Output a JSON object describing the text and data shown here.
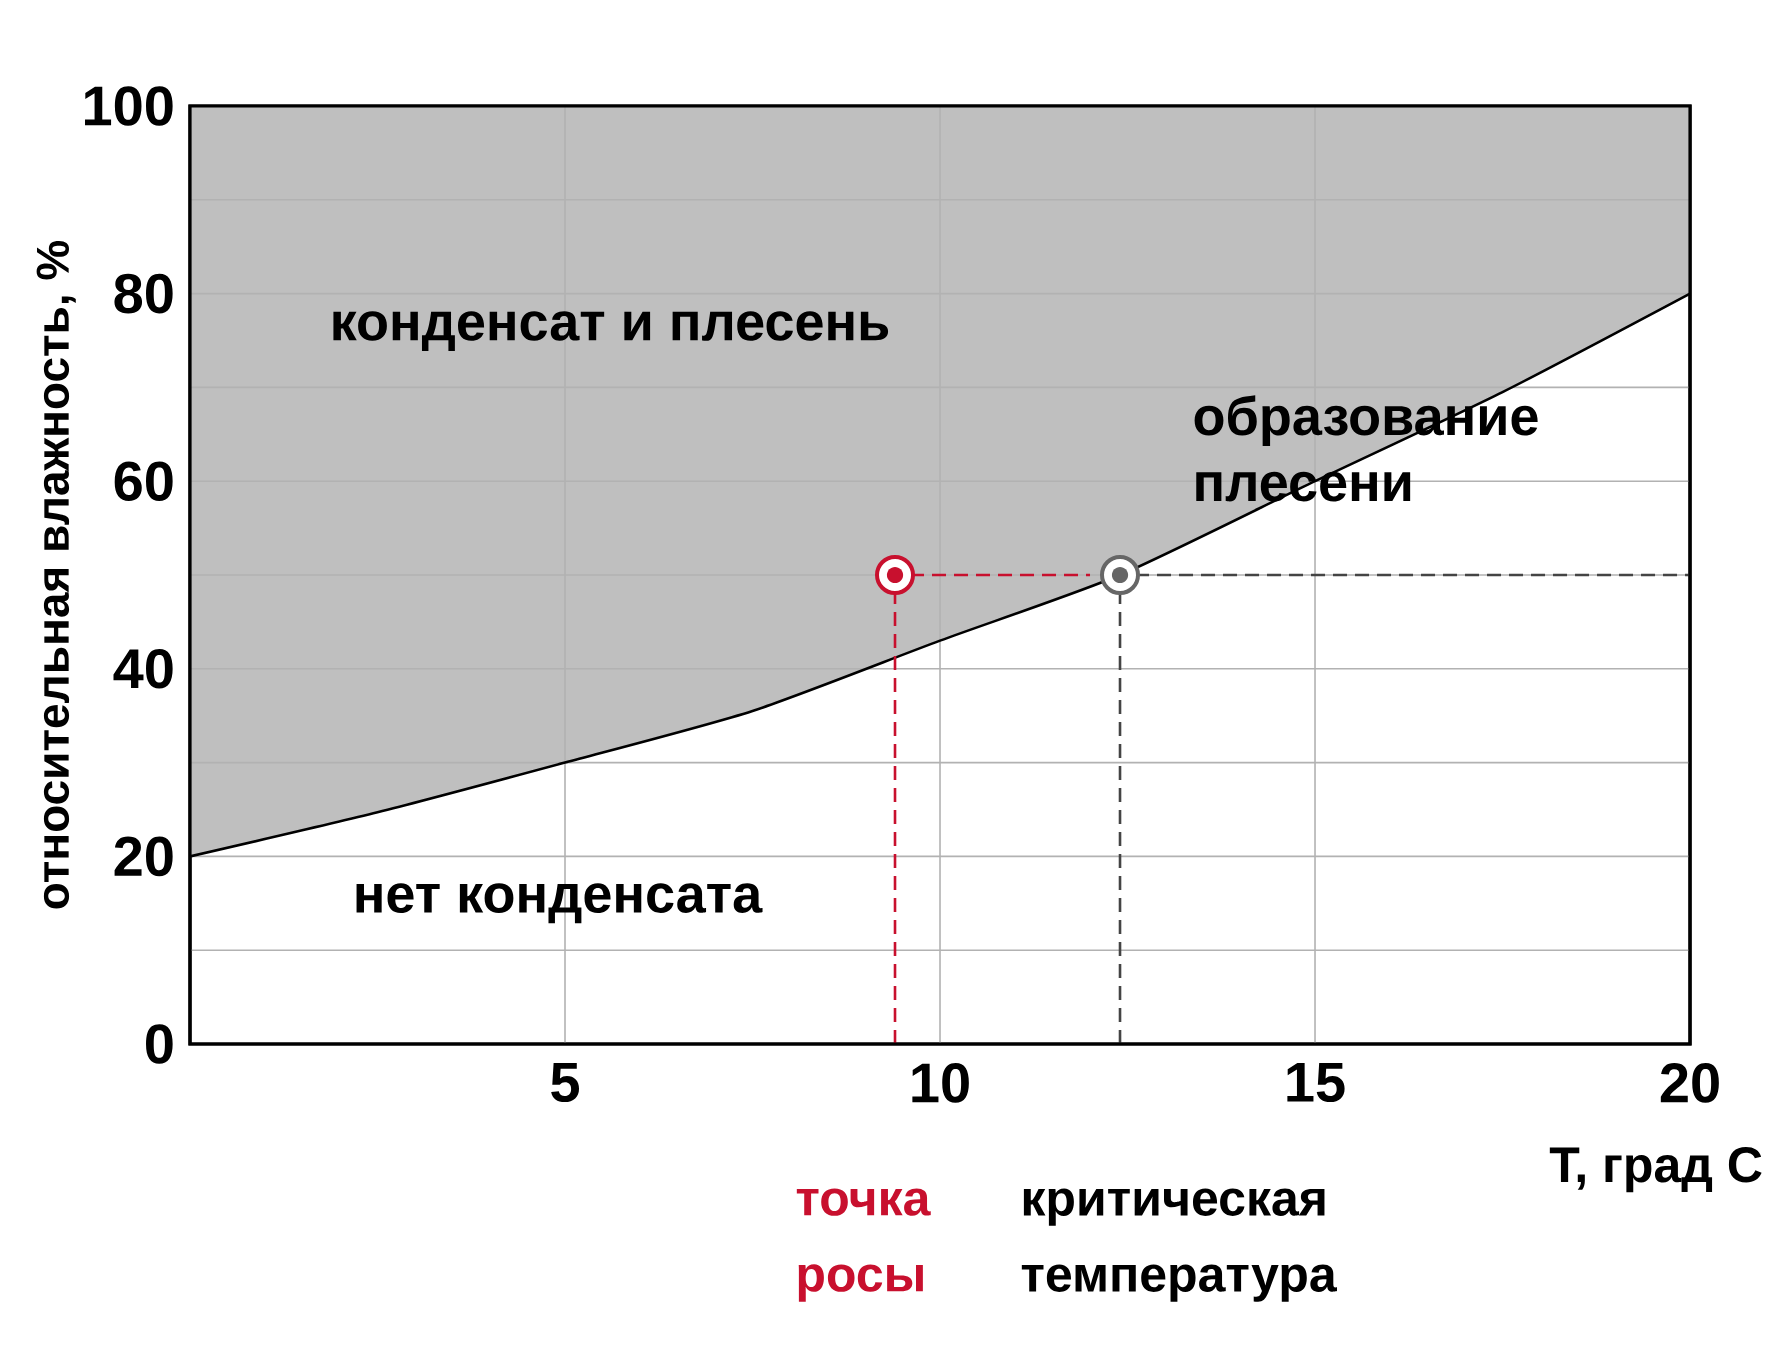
{
  "chart_data": {
    "type": "line",
    "xlabel": "T, град С",
    "ylabel": "относительная влажность, %",
    "xlim": [
      0,
      20
    ],
    "ylim": [
      0,
      100
    ],
    "xticks": [
      5,
      10,
      15,
      20
    ],
    "yticks": [
      0,
      {
        "value": 10,
        "label": null
      },
      20,
      {
        "value": 30,
        "label": null
      },
      40,
      {
        "value": 50,
        "label": null
      },
      60,
      {
        "value": 70,
        "label": null
      },
      80,
      {
        "value": 90,
        "label": null
      },
      100
    ],
    "grid": true,
    "series": [
      {
        "color": "#000000",
        "line_style": "solid",
        "marker": "none",
        "x": [
          0,
          2.5,
          5,
          7.5,
          10,
          12.4,
          15,
          17.5,
          20
        ],
        "values": [
          20,
          24.7,
          30,
          35.5,
          43,
          50,
          60,
          69.5,
          80
        ],
        "lower": [
          20,
          24.7,
          30,
          35.5,
          43,
          50,
          60,
          69.5,
          80
        ],
        "upper": [
          100,
          100,
          100,
          100,
          100,
          100,
          100,
          100,
          100
        ]
      },
      {
        "color": "#c8102e",
        "line_style": "dashed",
        "marker": "none",
        "x": [
          9.4,
          9.4,
          12
        ],
        "values": [
          0,
          50,
          50
        ]
      },
      {
        "color": "#444444",
        "line_style": "dashed",
        "marker": "none",
        "x": [
          12.4,
          12.4,
          20
        ],
        "values": [
          0,
          50,
          50
        ]
      },
      {
        "type": "scatter",
        "color": "#c8102e",
        "marker": "circle",
        "x": [
          9.4
        ],
        "values": [
          50
        ]
      },
      {
        "type": "scatter",
        "color": "#666666",
        "marker": "circle",
        "x": [
          12.4
        ],
        "values": [
          50
        ]
      }
    ],
    "annotations": [
      "конденсат и плесень",
      "образование плесени",
      "нет конденсата",
      "точка росы",
      "критическая температура"
    ]
  }
}
